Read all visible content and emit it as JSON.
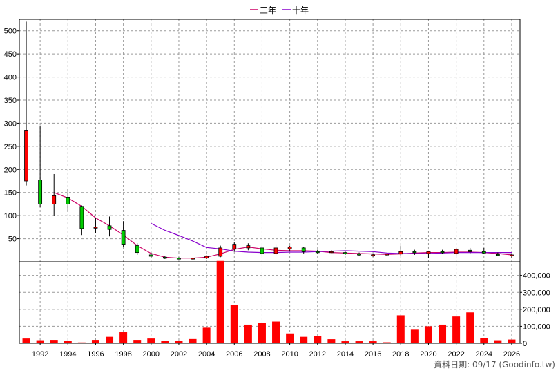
{
  "chart_data": [
    {
      "type": "candlestick",
      "legend": [
        {
          "label": "三年",
          "color": "#cc0066"
        },
        {
          "label": "十年",
          "color": "#8800cc"
        }
      ],
      "ylim": [
        0,
        525
      ],
      "yticks": [
        50,
        100,
        150,
        200,
        250,
        300,
        350,
        400,
        450,
        500
      ],
      "xlim": [
        1990.5,
        2026.6
      ],
      "xticks": [
        1992,
        1994,
        1996,
        1998,
        2000,
        2002,
        2004,
        2006,
        2008,
        2010,
        2012,
        2014,
        2016,
        2018,
        2020,
        2022,
        2024,
        2026
      ],
      "up_color": "#ff0000",
      "down_color": "#00cc00",
      "candles": [
        {
          "year": 1991,
          "open": 175,
          "high": 520,
          "low": 165,
          "close": 285
        },
        {
          "year": 1992,
          "open": 177,
          "high": 295,
          "low": 118,
          "close": 125
        },
        {
          "year": 1993,
          "open": 125,
          "high": 190,
          "low": 100,
          "close": 143
        },
        {
          "year": 1994,
          "open": 140,
          "high": 158,
          "low": 108,
          "close": 125
        },
        {
          "year": 1995,
          "open": 120,
          "high": 122,
          "low": 58,
          "close": 72
        },
        {
          "year": 1996,
          "open": 75,
          "high": 95,
          "low": 62,
          "close": 75
        },
        {
          "year": 1997,
          "open": 78,
          "high": 98,
          "low": 55,
          "close": 70
        },
        {
          "year": 1998,
          "open": 68,
          "high": 88,
          "low": 32,
          "close": 38
        },
        {
          "year": 1999,
          "open": 35,
          "high": 40,
          "low": 15,
          "close": 20
        },
        {
          "year": 2000,
          "open": 15,
          "high": 20,
          "low": 8,
          "close": 12
        },
        {
          "year": 2001,
          "open": 10,
          "high": 12,
          "low": 6,
          "close": 9
        },
        {
          "year": 2002,
          "open": 8,
          "high": 10,
          "low": 5,
          "close": 7
        },
        {
          "year": 2003,
          "open": 7,
          "high": 9,
          "low": 5,
          "close": 8
        },
        {
          "year": 2004,
          "open": 8,
          "high": 14,
          "low": 6,
          "close": 12
        },
        {
          "year": 2005,
          "open": 12,
          "high": 35,
          "low": 10,
          "close": 30
        },
        {
          "year": 2006,
          "open": 28,
          "high": 42,
          "low": 22,
          "close": 38
        },
        {
          "year": 2007,
          "open": 30,
          "high": 40,
          "low": 25,
          "close": 35
        },
        {
          "year": 2008,
          "open": 30,
          "high": 35,
          "low": 12,
          "close": 18
        },
        {
          "year": 2009,
          "open": 18,
          "high": 38,
          "low": 14,
          "close": 30
        },
        {
          "year": 2010,
          "open": 28,
          "high": 35,
          "low": 24,
          "close": 32
        },
        {
          "year": 2011,
          "open": 30,
          "high": 32,
          "low": 18,
          "close": 22
        },
        {
          "year": 2012,
          "open": 22,
          "high": 26,
          "low": 17,
          "close": 20
        },
        {
          "year": 2013,
          "open": 22,
          "high": 25,
          "low": 19,
          "close": 22
        },
        {
          "year": 2014,
          "open": 20,
          "high": 22,
          "low": 15,
          "close": 18
        },
        {
          "year": 2015,
          "open": 17,
          "high": 20,
          "low": 12,
          "close": 15
        },
        {
          "year": 2016,
          "open": 14,
          "high": 17,
          "low": 11,
          "close": 15
        },
        {
          "year": 2017,
          "open": 15,
          "high": 18,
          "low": 13,
          "close": 17
        },
        {
          "year": 2018,
          "open": 17,
          "high": 35,
          "low": 12,
          "close": 22
        },
        {
          "year": 2019,
          "open": 22,
          "high": 26,
          "low": 15,
          "close": 20
        },
        {
          "year": 2020,
          "open": 18,
          "high": 24,
          "low": 8,
          "close": 22
        },
        {
          "year": 2021,
          "open": 22,
          "high": 26,
          "low": 17,
          "close": 20
        },
        {
          "year": 2022,
          "open": 18,
          "high": 30,
          "low": 14,
          "close": 27
        },
        {
          "year": 2023,
          "open": 25,
          "high": 30,
          "low": 18,
          "close": 22
        },
        {
          "year": 2024,
          "open": 22,
          "high": 30,
          "low": 18,
          "close": 19
        },
        {
          "year": 2025,
          "open": 16,
          "high": 20,
          "low": 12,
          "close": 15
        },
        {
          "year": 2026,
          "open": 13,
          "high": 17,
          "low": 9,
          "close": 15
        }
      ],
      "series": [
        {
          "name": "三年",
          "color": "#cc0066",
          "points": [
            [
              1993,
              150
            ],
            [
              1994,
              138
            ],
            [
              1995,
              120
            ],
            [
              1996,
              95
            ],
            [
              1997,
              78
            ],
            [
              1998,
              58
            ],
            [
              1999,
              35
            ],
            [
              2000,
              18
            ],
            [
              2001,
              10
            ],
            [
              2002,
              8
            ],
            [
              2003,
              8
            ],
            [
              2004,
              10
            ],
            [
              2005,
              17
            ],
            [
              2006,
              27
            ],
            [
              2007,
              32
            ],
            [
              2008,
              28
            ],
            [
              2009,
              25
            ],
            [
              2010,
              24
            ],
            [
              2011,
              24
            ],
            [
              2012,
              23
            ],
            [
              2013,
              20
            ],
            [
              2014,
              19
            ],
            [
              2015,
              18
            ],
            [
              2016,
              17
            ],
            [
              2017,
              16
            ],
            [
              2018,
              17
            ],
            [
              2019,
              19
            ],
            [
              2020,
              20
            ],
            [
              2021,
              20
            ],
            [
              2022,
              21
            ],
            [
              2023,
              21
            ],
            [
              2024,
              20
            ],
            [
              2025,
              18
            ],
            [
              2026,
              15
            ]
          ]
        },
        {
          "name": "十年",
          "color": "#8800cc",
          "points": [
            [
              2000,
              83
            ],
            [
              2001,
              68
            ],
            [
              2002,
              57
            ],
            [
              2003,
              45
            ],
            [
              2004,
              31
            ],
            [
              2005,
              28
            ],
            [
              2006,
              23
            ],
            [
              2007,
              21
            ],
            [
              2008,
              20
            ],
            [
              2009,
              20
            ],
            [
              2010,
              21
            ],
            [
              2011,
              21
            ],
            [
              2012,
              22
            ],
            [
              2013,
              23
            ],
            [
              2014,
              24
            ],
            [
              2015,
              23
            ],
            [
              2016,
              22
            ],
            [
              2017,
              19
            ],
            [
              2018,
              18
            ],
            [
              2019,
              18
            ],
            [
              2020,
              18
            ],
            [
              2021,
              19
            ],
            [
              2022,
              20
            ],
            [
              2023,
              20
            ],
            [
              2024,
              20
            ],
            [
              2025,
              20
            ],
            [
              2026,
              20
            ]
          ]
        }
      ]
    },
    {
      "type": "bar",
      "ylim": [
        0,
        480000
      ],
      "yticks": [
        0,
        100000,
        200000,
        300000,
        400000
      ],
      "ytick_labels": [
        "0",
        "100,000",
        "200,000",
        "300,000",
        "400,000"
      ],
      "bar_color": "#ff0000",
      "x": [
        1991,
        1992,
        1993,
        1994,
        1995,
        1996,
        1997,
        1998,
        1999,
        2000,
        2001,
        2002,
        2003,
        2004,
        2005,
        2006,
        2007,
        2008,
        2009,
        2010,
        2011,
        2012,
        2013,
        2014,
        2015,
        2016,
        2017,
        2018,
        2019,
        2020,
        2021,
        2022,
        2023,
        2024,
        2025,
        2026
      ],
      "values": [
        28000,
        18000,
        20000,
        16000,
        5000,
        20000,
        38000,
        65000,
        20000,
        28000,
        15000,
        15000,
        25000,
        92000,
        485000,
        225000,
        110000,
        122000,
        128000,
        58000,
        38000,
        42000,
        24000,
        12000,
        12000,
        12000,
        6000,
        165000,
        80000,
        100000,
        110000,
        158000,
        182000,
        32000,
        18000,
        22000
      ]
    }
  ],
  "footer": {
    "text": "資料日期: 09/17  (Goodinfo.tw)"
  }
}
